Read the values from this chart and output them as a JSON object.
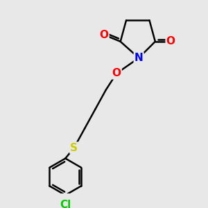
{
  "bg_color": "#e8e8e8",
  "atom_colors": {
    "O": "#ff0000",
    "N": "#0000ff",
    "S": "#cccc00",
    "Cl": "#00cc00",
    "C": "#000000"
  },
  "bond_color": "#000000",
  "bond_width": 1.8,
  "font_size_atoms": 11
}
